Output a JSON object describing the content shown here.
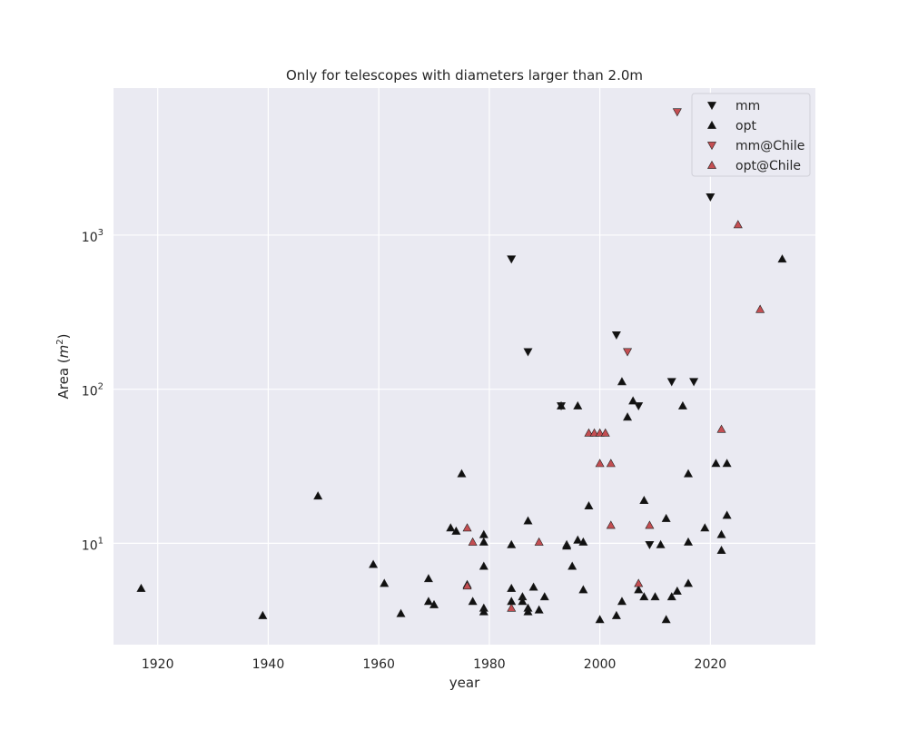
{
  "chart_data": {
    "type": "scatter",
    "title": "Only for telescopes with diameters larger than 2.0m",
    "xlabel": "year",
    "ylabel_main": "Area (",
    "ylabel_var": "m",
    "ylabel_exp": "2",
    "ylabel_close": ")",
    "xscale": "linear",
    "yscale": "log",
    "xlim": [
      1912,
      2039
    ],
    "ylim": [
      2.2,
      9000
    ],
    "xticks": [
      {
        "value": 1920,
        "label": "1920"
      },
      {
        "value": 1940,
        "label": "1940"
      },
      {
        "value": 1960,
        "label": "1960"
      },
      {
        "value": 1980,
        "label": "1980"
      },
      {
        "value": 2000,
        "label": "2000"
      },
      {
        "value": 2020,
        "label": "2020"
      }
    ],
    "yticks": [
      {
        "value": 10,
        "base": "10",
        "exp": "1"
      },
      {
        "value": 100,
        "base": "10",
        "exp": "2"
      },
      {
        "value": 1000,
        "base": "10",
        "exp": "3"
      }
    ],
    "grid": true,
    "legend_position": "top-right",
    "colors": {
      "black": "#111111",
      "red": "#c44e52",
      "background": "#eaeaf2",
      "grid": "#ffffff"
    },
    "series": [
      {
        "name": "mm",
        "marker": "triangle-down",
        "color": "#111111",
        "points": [
          [
            1984,
            700
          ],
          [
            1987,
            175
          ],
          [
            1993,
            78
          ],
          [
            2003,
            225
          ],
          [
            2007,
            78
          ],
          [
            2009,
            9.8
          ],
          [
            2013,
            112
          ],
          [
            2017,
            112
          ],
          [
            2020,
            1770
          ]
        ]
      },
      {
        "name": "opt",
        "marker": "triangle-up",
        "color": "#111111",
        "points": [
          [
            1917,
            5.1
          ],
          [
            1939,
            3.4
          ],
          [
            1949,
            20.3
          ],
          [
            1959,
            7.3
          ],
          [
            1961,
            5.5
          ],
          [
            1964,
            3.5
          ],
          [
            1969,
            5.9
          ],
          [
            1969,
            4.2
          ],
          [
            1970,
            4.0
          ],
          [
            1973,
            12.6
          ],
          [
            1974,
            12.0
          ],
          [
            1975,
            28.3
          ],
          [
            1976,
            5.4
          ],
          [
            1977,
            4.2
          ],
          [
            1979,
            11.4
          ],
          [
            1979,
            10.2
          ],
          [
            1979,
            7.1
          ],
          [
            1979,
            3.8
          ],
          [
            1979,
            3.6
          ],
          [
            1984,
            9.8
          ],
          [
            1984,
            5.1
          ],
          [
            1984,
            4.2
          ],
          [
            1986,
            4.5
          ],
          [
            1986,
            4.2
          ],
          [
            1987,
            14.0
          ],
          [
            1987,
            3.8
          ],
          [
            1987,
            3.6
          ],
          [
            1988,
            5.2
          ],
          [
            1989,
            3.7
          ],
          [
            1990,
            4.5
          ],
          [
            1993,
            78
          ],
          [
            1994,
            9.8
          ],
          [
            1994,
            9.6
          ],
          [
            1995,
            7.1
          ],
          [
            1996,
            78
          ],
          [
            1996,
            10.5
          ],
          [
            1997,
            10.2
          ],
          [
            1997,
            5.0
          ],
          [
            1998,
            17.5
          ],
          [
            2000,
            3.2
          ],
          [
            2003,
            3.4
          ],
          [
            2004,
            112
          ],
          [
            2004,
            4.2
          ],
          [
            2005,
            66
          ],
          [
            2006,
            84
          ],
          [
            2007,
            5.0
          ],
          [
            2008,
            19.0
          ],
          [
            2008,
            4.5
          ],
          [
            2010,
            4.5
          ],
          [
            2011,
            9.8
          ],
          [
            2012,
            14.5
          ],
          [
            2012,
            3.2
          ],
          [
            2013,
            4.5
          ],
          [
            2014,
            4.9
          ],
          [
            2015,
            78
          ],
          [
            2016,
            28.3
          ],
          [
            2016,
            10.2
          ],
          [
            2016,
            5.5
          ],
          [
            2019,
            12.6
          ],
          [
            2021,
            33
          ],
          [
            2022,
            11.4
          ],
          [
            2022,
            9.0
          ],
          [
            2023,
            33
          ],
          [
            2023,
            15.2
          ],
          [
            2033,
            700
          ]
        ]
      },
      {
        "name": "mm@Chile",
        "marker": "triangle-down",
        "color": "#c44e52",
        "points": [
          [
            2005,
            175
          ],
          [
            2014,
            6300
          ]
        ]
      },
      {
        "name": "opt@Chile",
        "marker": "triangle-up",
        "color": "#c44e52",
        "points": [
          [
            1976,
            12.6
          ],
          [
            1976,
            5.3
          ],
          [
            1977,
            10.2
          ],
          [
            1984,
            3.8
          ],
          [
            1989,
            10.2
          ],
          [
            1998,
            52
          ],
          [
            1999,
            52
          ],
          [
            2000,
            52
          ],
          [
            2001,
            52
          ],
          [
            2000,
            33
          ],
          [
            2002,
            33
          ],
          [
            2002,
            13.1
          ],
          [
            2007,
            5.5
          ],
          [
            2009,
            13.1
          ],
          [
            2022,
            55
          ],
          [
            2025,
            1170
          ],
          [
            2029,
            330
          ]
        ]
      }
    ]
  }
}
